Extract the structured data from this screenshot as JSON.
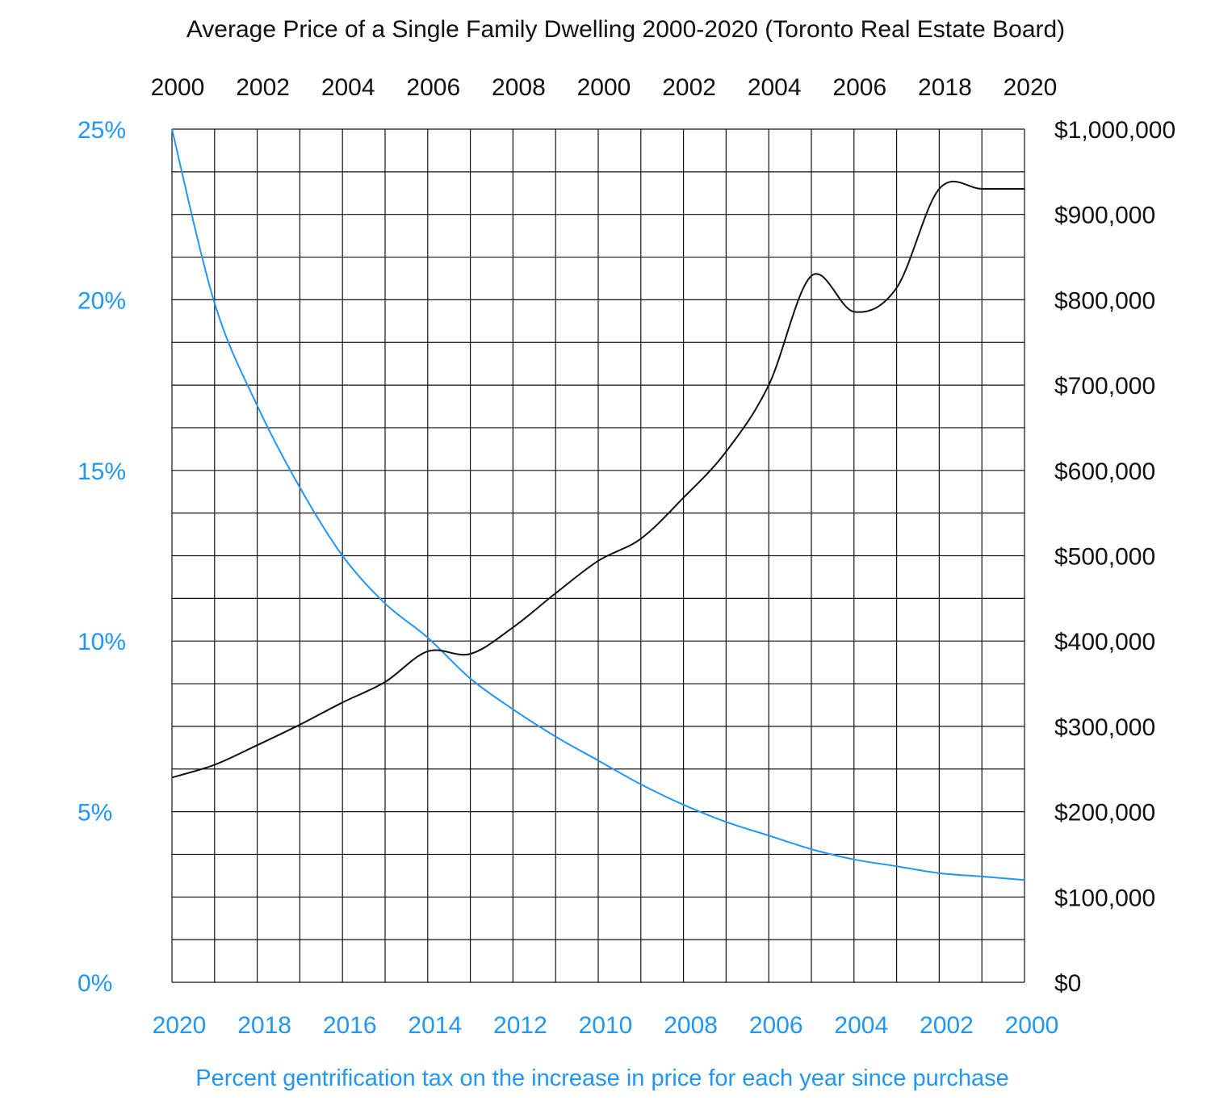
{
  "chart_data": {
    "type": "line",
    "title": "Average Price of a Single Family Dwelling 2000-2020 (Toronto Real Estate Board)",
    "xlabel": "Percent gentrification tax on the increase in price for each year since purchase",
    "grid": true,
    "top_axis": {
      "tick_labels": [
        "2000",
        "2002",
        "2004",
        "2006",
        "2008",
        "2000",
        "2002",
        "2004",
        "2006",
        "2018",
        "2020"
      ]
    },
    "bottom_axis": {
      "tick_labels": [
        "2020",
        "2018",
        "2016",
        "2014",
        "2012",
        "2010",
        "2008",
        "2006",
        "2004",
        "2002",
        "2000"
      ]
    },
    "left_axis": {
      "tick_labels": [
        "25%",
        "20%",
        "15%",
        "10%",
        "5%",
        "0%"
      ],
      "ylim": [
        0,
        25
      ]
    },
    "right_axis": {
      "tick_labels": [
        "$1,000,000",
        "$900,000",
        "$800,000",
        "$700,000",
        "$600,000",
        "$500,000",
        "$400,000",
        "$300,000",
        "$200,000",
        "$100,000",
        "$0"
      ],
      "ylim": [
        0,
        1000000
      ]
    },
    "series": [
      {
        "axis": "right",
        "color": "#111111",
        "x": [
          2000,
          2001,
          2002,
          2003,
          2004,
          2005,
          2006,
          2007,
          2008,
          2009,
          2010,
          2011,
          2012,
          2013,
          2014,
          2015,
          2016,
          2017,
          2018,
          2019,
          2020
        ],
        "values": [
          240000,
          255000,
          278000,
          302000,
          328000,
          352000,
          388000,
          385000,
          416000,
          456000,
          494000,
          520000,
          568000,
          622000,
          700000,
          828000,
          786000,
          814000,
          930000,
          930000,
          930000
        ]
      },
      {
        "axis": "left",
        "color": "#2196f3",
        "x": [
          0,
          1,
          2,
          3,
          4,
          5,
          6,
          7,
          8,
          9,
          10,
          11,
          12,
          13,
          14,
          15,
          16,
          17,
          18,
          19,
          20
        ],
        "values": [
          25,
          19.9,
          16.9,
          14.5,
          12.5,
          11.1,
          10.1,
          8.9,
          8.0,
          7.2,
          6.5,
          5.8,
          5.2,
          4.7,
          4.3,
          3.9,
          3.6,
          3.4,
          3.2,
          3.1,
          3.0
        ]
      }
    ]
  },
  "colors": {
    "price_line": "#111111",
    "tax_line": "#2196f3",
    "grid": "#111111"
  }
}
